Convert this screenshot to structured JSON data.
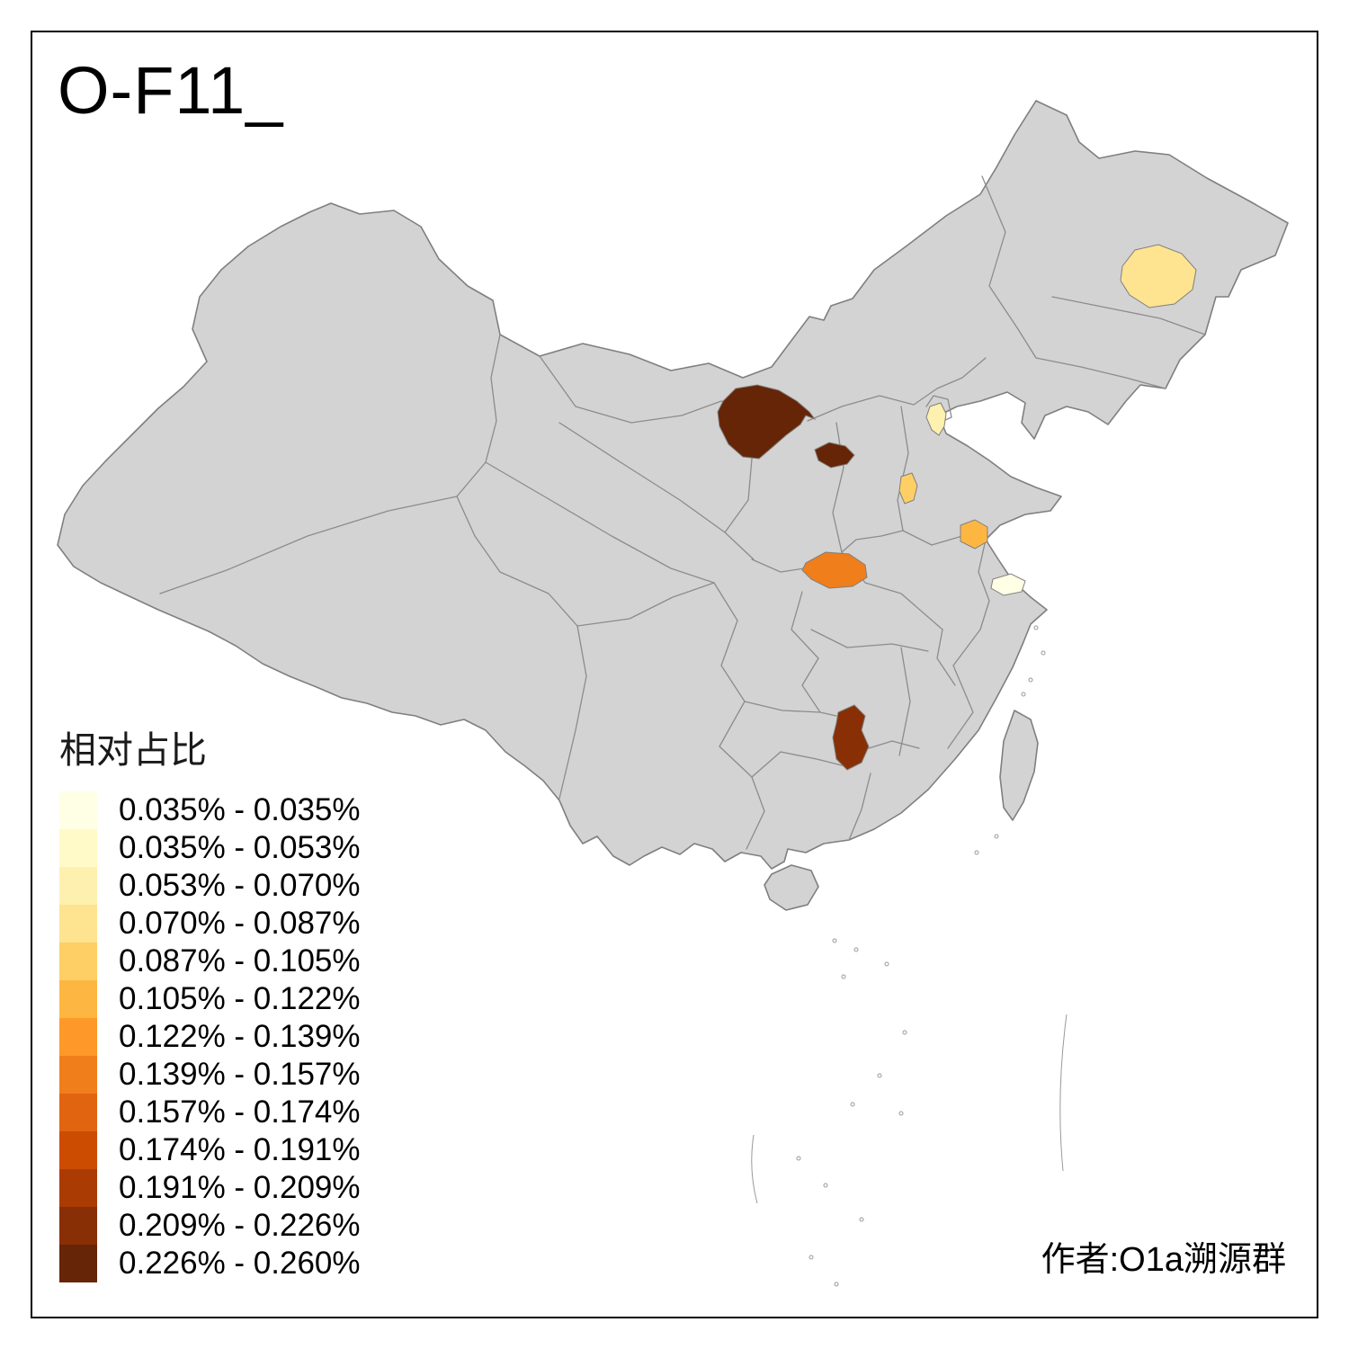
{
  "title": "O-F11_",
  "attribution": "作者:O1a溯源群",
  "legend": {
    "title": "相对占比",
    "bins": [
      {
        "label": "0.035% - 0.035%",
        "color": "#FFFFE5"
      },
      {
        "label": "0.035% - 0.053%",
        "color": "#FFFAC7"
      },
      {
        "label": "0.053% - 0.070%",
        "color": "#FEF0AE"
      },
      {
        "label": "0.070% - 0.087%",
        "color": "#FEE391"
      },
      {
        "label": "0.087% - 0.105%",
        "color": "#FECF65"
      },
      {
        "label": "0.105% - 0.122%",
        "color": "#FEB642"
      },
      {
        "label": "0.122% - 0.139%",
        "color": "#FE9929"
      },
      {
        "label": "0.139% - 0.157%",
        "color": "#F07E1B"
      },
      {
        "label": "0.157% - 0.174%",
        "color": "#E16410"
      },
      {
        "label": "0.174% - 0.191%",
        "color": "#CC4C02"
      },
      {
        "label": "0.191% - 0.209%",
        "color": "#AA3C03"
      },
      {
        "label": "0.209% - 0.226%",
        "color": "#882F05"
      },
      {
        "label": "0.226% - 0.260%",
        "color": "#662506"
      }
    ]
  },
  "map": {
    "base_fill": "#D3D3D3",
    "outline_color": "#7F7F7F",
    "border_color": "#8C8C8C",
    "islet_color": "#9A9A9A",
    "regions": [
      {
        "name": "northeast-region",
        "bin": "0.070% - 0.087%",
        "color": "#FEE391"
      },
      {
        "name": "ordos-region",
        "bin": "0.226% - 0.260%",
        "color": "#662506"
      },
      {
        "name": "north-shaanxi-region",
        "bin": "0.226% - 0.260%",
        "color": "#662506"
      },
      {
        "name": "beijing-region",
        "bin": "0.053% - 0.070%",
        "color": "#FEF0AE"
      },
      {
        "name": "south-hebei-region",
        "bin": "0.087% - 0.105%",
        "color": "#FECF65"
      },
      {
        "name": "west-shandong-region",
        "bin": "0.105% - 0.122%",
        "color": "#FEB642"
      },
      {
        "name": "south-shaanxi-region",
        "bin": "0.139% - 0.157%",
        "color": "#F07E1B"
      },
      {
        "name": "shanghai-region",
        "bin": "0.035% - 0.035%",
        "color": "#FFFFE5"
      },
      {
        "name": "guizhou-region",
        "bin": "0.209% - 0.226%",
        "color": "#882F05"
      }
    ]
  },
  "chart_data": {
    "type": "choropleth_map",
    "title": "O-F11_",
    "legend_title": "相对占比",
    "value_unit": "%",
    "bin_edges_percent": [
      0.035,
      0.035,
      0.053,
      0.07,
      0.087,
      0.105,
      0.122,
      0.139,
      0.157,
      0.174,
      0.191,
      0.209,
      0.226,
      0.26
    ],
    "highlighted_regions": [
      {
        "name": "northeast-region",
        "value_range": "0.070% - 0.087%"
      },
      {
        "name": "ordos-region",
        "value_range": "0.226% - 0.260%"
      },
      {
        "name": "north-shaanxi-region",
        "value_range": "0.226% - 0.260%"
      },
      {
        "name": "beijing-region",
        "value_range": "0.053% - 0.070%"
      },
      {
        "name": "south-hebei-region",
        "value_range": "0.087% - 0.105%"
      },
      {
        "name": "west-shandong-region",
        "value_range": "0.105% - 0.122%"
      },
      {
        "name": "south-shaanxi-region",
        "value_range": "0.139% - 0.157%"
      },
      {
        "name": "shanghai-region",
        "value_range": "0.035% - 0.035%"
      },
      {
        "name": "guizhou-region",
        "value_range": "0.209% - 0.226%"
      }
    ]
  }
}
